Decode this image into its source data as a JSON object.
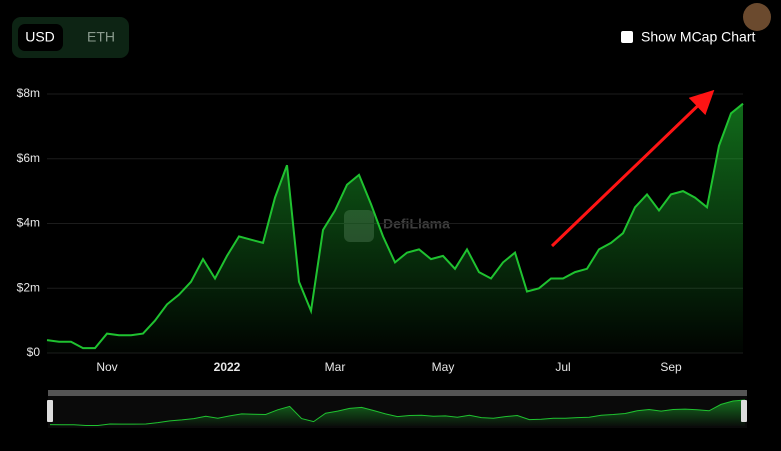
{
  "ui": {
    "currency_options": [
      "USD",
      "ETH"
    ],
    "mcap_toggle": "Show MCap Chart",
    "watermark": "DefiLlama"
  },
  "chart_data": {
    "type": "area",
    "color": "#1fc230",
    "categories": [
      null,
      null,
      null,
      null,
      null,
      "Nov",
      null,
      null,
      null,
      null,
      null,
      null,
      null,
      null,
      null,
      "2022",
      null,
      null,
      null,
      null,
      null,
      null,
      null,
      null,
      "Mar",
      null,
      null,
      null,
      null,
      null,
      null,
      null,
      null,
      "May",
      null,
      null,
      null,
      null,
      null,
      null,
      null,
      null,
      null,
      "Jul",
      null,
      null,
      null,
      null,
      null,
      null,
      null,
      null,
      "Sep",
      null,
      null,
      null,
      null,
      null,
      null
    ],
    "values": [
      400000,
      350000,
      350000,
      150000,
      150000,
      600000,
      550000,
      550000,
      600000,
      1000000,
      1500000,
      1800000,
      2200000,
      2900000,
      2300000,
      3000000,
      3600000,
      3500000,
      3400000,
      4800000,
      5800000,
      2200000,
      1300000,
      3800000,
      4400000,
      5200000,
      5500000,
      4600000,
      3600000,
      2800000,
      3100000,
      3200000,
      2900000,
      3000000,
      2600000,
      3200000,
      2500000,
      2300000,
      2800000,
      3100000,
      1900000,
      2000000,
      2300000,
      2300000,
      2500000,
      2600000,
      3200000,
      3400000,
      3700000,
      4500000,
      4900000,
      4400000,
      4900000,
      5000000,
      4800000,
      4500000,
      6400000,
      7400000,
      7700000
    ],
    "ylim": [
      0,
      8000000
    ],
    "yticks": [
      {
        "value": 0,
        "label": "$0"
      },
      {
        "value": 2000000,
        "label": "$2m"
      },
      {
        "value": 4000000,
        "label": "$4m"
      },
      {
        "value": 6000000,
        "label": "$6m"
      },
      {
        "value": 8000000,
        "label": "$8m"
      }
    ],
    "grid": true
  }
}
